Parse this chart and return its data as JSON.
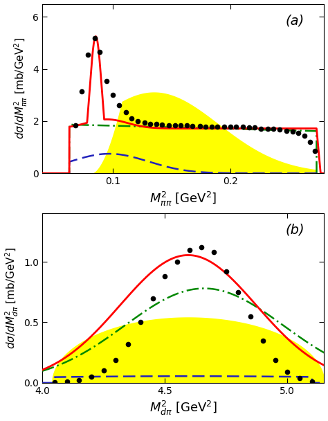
{
  "panel_a": {
    "label": "(a)",
    "xlim": [
      0.04,
      0.28
    ],
    "ylim": [
      0,
      6.5
    ],
    "xlabel": "$M_{\\pi\\pi}^2$ [GeV$^2$]",
    "ylabel": "$d\\sigma/dM_{\\pi\\pi}^2$ [mb/GeV$^2$]",
    "xticks": [
      0.1,
      0.2
    ],
    "yticks": [
      0,
      2,
      4,
      6
    ]
  },
  "panel_b": {
    "label": "(b)",
    "xlim": [
      4.0,
      5.15
    ],
    "ylim": [
      0,
      1.4
    ],
    "xlabel": "$M_{d\\pi}^2$ [GeV$^2$]",
    "ylabel": "$d\\sigma/dM_{d\\pi}^2$ [mb/GeV$^2$]",
    "xticks": [
      4.0,
      4.5,
      5.0
    ],
    "yticks": [
      0,
      0.5,
      1.0
    ]
  },
  "colors": {
    "red": "#ff0000",
    "green_dashdot": "#008800",
    "blue_dashed": "#2222bb",
    "yellow": "#ffff00",
    "black": "#000000"
  },
  "dots_a_x": [
    0.068,
    0.0735,
    0.079,
    0.0845,
    0.089,
    0.0945,
    0.1,
    0.1055,
    0.111,
    0.116,
    0.121,
    0.127,
    0.132,
    0.137,
    0.142,
    0.148,
    0.153,
    0.158,
    0.163,
    0.168,
    0.174,
    0.179,
    0.184,
    0.189,
    0.195,
    0.2,
    0.205,
    0.211,
    0.216,
    0.221,
    0.226,
    0.232,
    0.237,
    0.242,
    0.248,
    0.253,
    0.258,
    0.263,
    0.268,
    0.272
  ],
  "dots_a_y": [
    1.85,
    3.15,
    4.55,
    5.2,
    4.65,
    3.55,
    3.0,
    2.6,
    2.35,
    2.1,
    2.0,
    1.95,
    1.9,
    1.9,
    1.88,
    1.85,
    1.85,
    1.85,
    1.85,
    1.82,
    1.82,
    1.8,
    1.8,
    1.78,
    1.78,
    1.78,
    1.78,
    1.78,
    1.75,
    1.75,
    1.72,
    1.72,
    1.7,
    1.68,
    1.62,
    1.6,
    1.55,
    1.45,
    1.2,
    0.85
  ],
  "dots_b_x": [
    4.05,
    4.1,
    4.15,
    4.2,
    4.25,
    4.3,
    4.35,
    4.4,
    4.45,
    4.5,
    4.55,
    4.6,
    4.65,
    4.7,
    4.75,
    4.8,
    4.85,
    4.9,
    4.95,
    5.0,
    5.05,
    5.1
  ],
  "dots_b_y": [
    0.005,
    0.01,
    0.025,
    0.05,
    0.1,
    0.19,
    0.32,
    0.5,
    0.7,
    0.88,
    1.0,
    1.1,
    1.12,
    1.08,
    0.92,
    0.75,
    0.55,
    0.35,
    0.19,
    0.09,
    0.04,
    0.01
  ]
}
